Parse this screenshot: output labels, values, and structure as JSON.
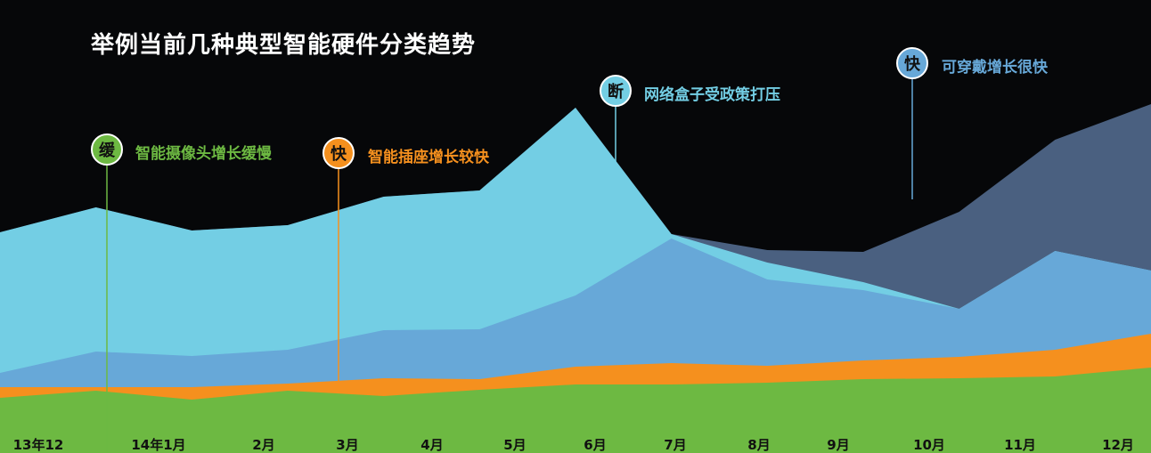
{
  "title": "举例当前几种典型智能硬件分类趋势",
  "chart_data": {
    "type": "area",
    "categories": [
      "13年12",
      "14年1月",
      "2月",
      "3月",
      "4月",
      "5月",
      "6月",
      "7月",
      "8月",
      "9月",
      "10月",
      "11月",
      "12月"
    ],
    "stacked": true,
    "series": [
      {
        "color": "#6db942",
        "values": [
          62,
          70,
          60,
          70,
          64,
          71,
          77,
          77,
          79,
          83,
          84,
          86,
          96
        ]
      },
      {
        "color": "#f5901e",
        "values": [
          12,
          4,
          14,
          8,
          20,
          12,
          20,
          24,
          19,
          21,
          24,
          30,
          38
        ]
      },
      {
        "color": "#67a8d8",
        "values": [
          16,
          40,
          35,
          38,
          54,
          56,
          80,
          140,
          97,
          79,
          54,
          111,
          71
        ]
      },
      {
        "color": "#73cee4",
        "values": [
          158,
          162,
          141,
          140,
          150,
          156,
          211,
          5,
          19,
          9,
          0,
          0,
          0
        ]
      },
      {
        "color": "#4a6080",
        "values": [
          0,
          0,
          0,
          0,
          0,
          0,
          0,
          0,
          14,
          34,
          109,
          125,
          187
        ]
      }
    ],
    "ylim": [
      0,
      400
    ],
    "grid": false,
    "annotations": [
      {
        "badge": "缓",
        "text": "智能摄像头增长缓慢",
        "color": "#6db942",
        "text_color": "#6db942"
      },
      {
        "badge": "快",
        "text": "智能插座增长较快",
        "color": "#f5901e",
        "text_color": "#f5901e"
      },
      {
        "badge": "断",
        "text": "网络盒子受政策打压",
        "color": "#73cee4",
        "text_color": "#73cee4"
      },
      {
        "badge": "快",
        "text": "可穿戴增长很快",
        "color": "#67a8d8",
        "text_color": "#67a8d8"
      }
    ]
  }
}
